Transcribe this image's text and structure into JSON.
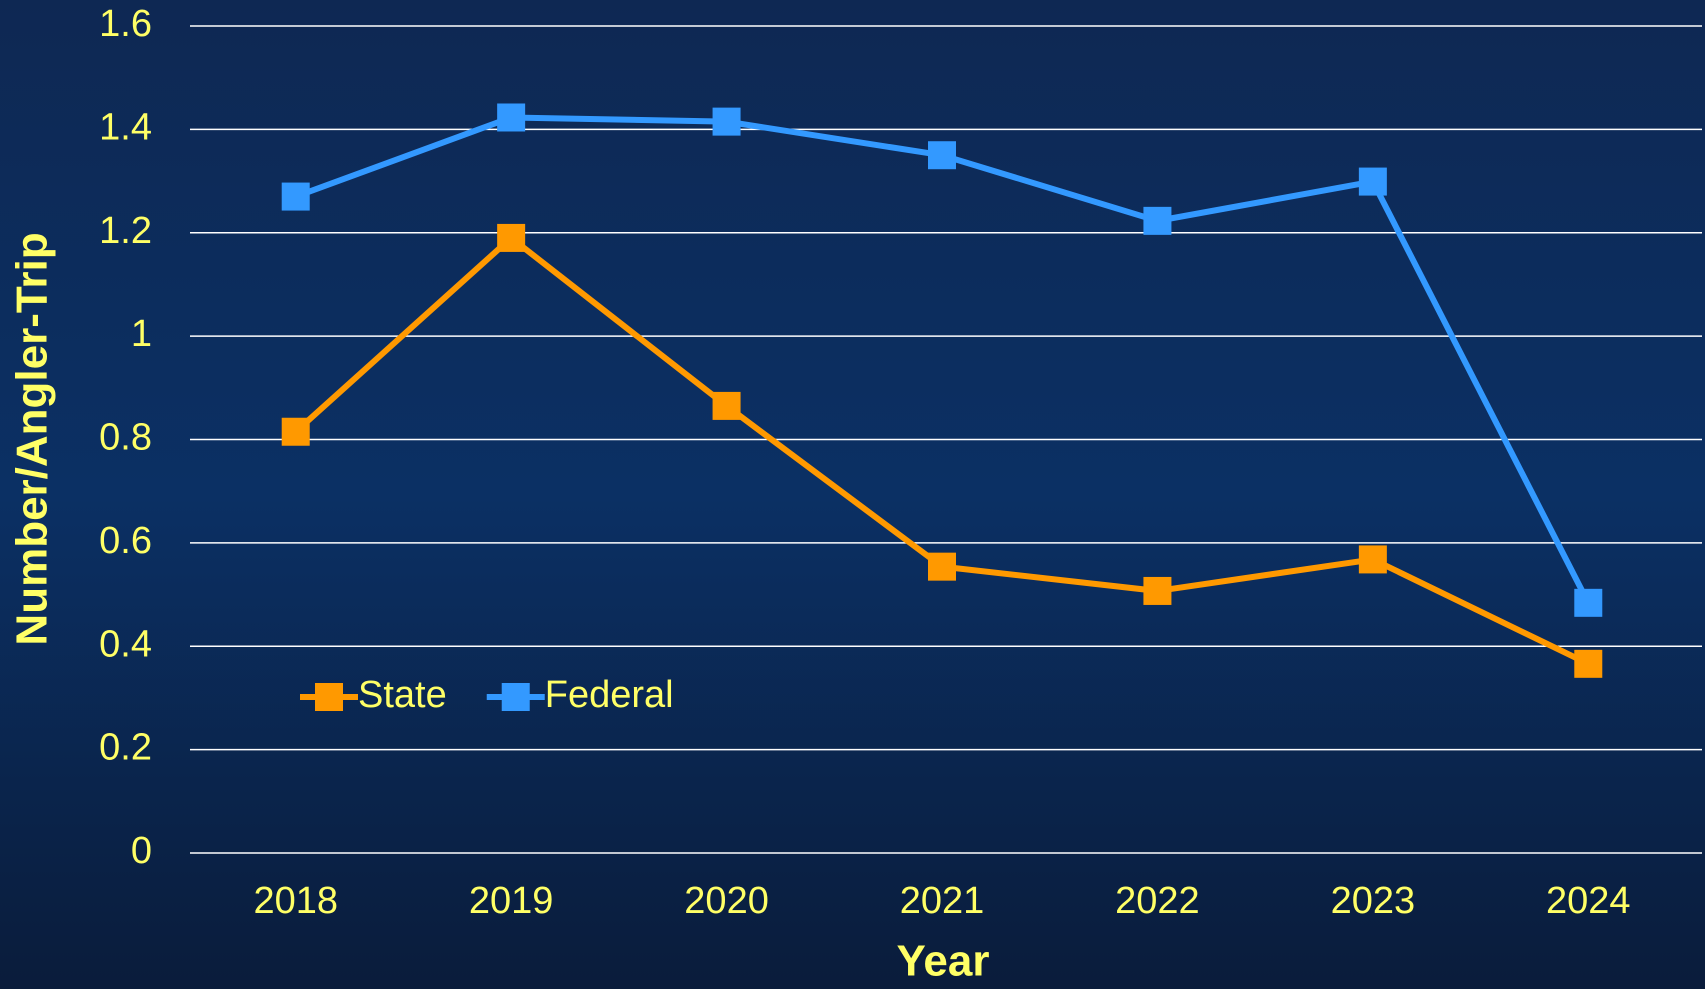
{
  "chart_data": {
    "type": "line",
    "xlabel": "Year",
    "ylabel": "Number/Angler-Trip",
    "categories": [
      "2018",
      "2019",
      "2020",
      "2021",
      "2022",
      "2023",
      "2024"
    ],
    "series": [
      {
        "name": "State",
        "color": "#ff9900",
        "values": [
          0.815,
          1.19,
          0.865,
          0.554,
          0.507,
          0.568,
          0.366
        ]
      },
      {
        "name": "Federal",
        "color": "#3399ff",
        "values": [
          1.27,
          1.423,
          1.415,
          1.35,
          1.223,
          1.299,
          0.484
        ]
      }
    ],
    "ylim": [
      0,
      1.6
    ],
    "yticks": [
      0,
      0.2,
      0.4,
      0.6,
      0.8,
      1,
      1.2,
      1.4,
      1.6
    ],
    "grid": true,
    "legend": "lower left"
  }
}
